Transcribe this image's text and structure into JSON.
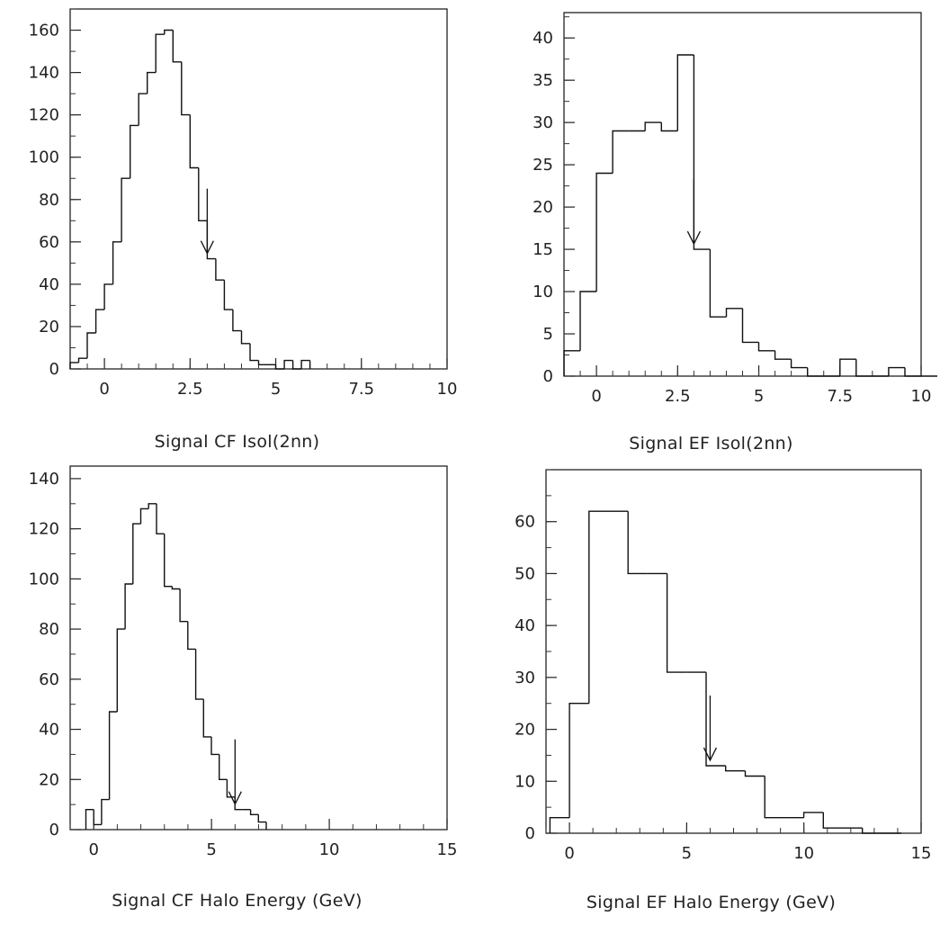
{
  "chart_data": [
    {
      "type": "histogram",
      "xlabel": "Signal CF Isol(2nn)",
      "ylabel": "",
      "xlim": [
        -1,
        10
      ],
      "ylim": [
        0,
        170
      ],
      "xticks": [
        "0",
        "2.5",
        "5",
        "7.5",
        "10"
      ],
      "yticks": [
        "0",
        "20",
        "40",
        "60",
        "80",
        "100",
        "120",
        "140",
        "160"
      ],
      "bin_width": 0.25,
      "bins_start": -1,
      "values": [
        3,
        5,
        17,
        28,
        40,
        60,
        90,
        115,
        130,
        140,
        158,
        160,
        145,
        120,
        95,
        70,
        52,
        42,
        28,
        18,
        12,
        4,
        2,
        2,
        0,
        4,
        0,
        4
      ],
      "cut_arrow_x": 3.0
    },
    {
      "type": "histogram",
      "xlabel": "Signal EF Isol(2nn)",
      "ylabel": "",
      "xlim": [
        -1,
        10
      ],
      "ylim": [
        0,
        43
      ],
      "xticks": [
        "0",
        "2.5",
        "5",
        "7.5",
        "10"
      ],
      "yticks": [
        "0",
        "5",
        "10",
        "15",
        "20",
        "25",
        "30",
        "35",
        "40"
      ],
      "bin_width": 0.5,
      "bins_start": -1,
      "values": [
        3,
        10,
        24,
        29,
        29,
        30,
        29,
        38,
        15,
        7,
        8,
        4,
        3,
        2,
        1,
        0,
        0,
        2,
        0,
        0,
        1,
        0,
        0
      ],
      "cut_arrow_x": 3.0
    },
    {
      "type": "histogram",
      "xlabel": "Signal CF Halo Energy (GeV)",
      "ylabel": "",
      "xlim": [
        -1,
        15
      ],
      "ylim": [
        0,
        145
      ],
      "xticks": [
        "0",
        "5",
        "10",
        "15"
      ],
      "yticks": [
        "0",
        "20",
        "40",
        "60",
        "80",
        "100",
        "120",
        "140"
      ],
      "bin_width": 0.333,
      "bins_start": -0.333,
      "values": [
        8,
        2,
        12,
        47,
        80,
        98,
        122,
        128,
        130,
        118,
        97,
        96,
        83,
        72,
        52,
        37,
        30,
        20,
        13,
        8,
        8,
        6,
        3
      ],
      "cut_arrow_x": 6.0
    },
    {
      "type": "histogram",
      "xlabel": "Signal EF Halo Energy (GeV)",
      "ylabel": "",
      "xlim": [
        -1,
        15
      ],
      "ylim": [
        0,
        70
      ],
      "xticks": [
        "0",
        "5",
        "10",
        "15"
      ],
      "yticks": [
        "0",
        "10",
        "20",
        "30",
        "40",
        "50",
        "60"
      ],
      "bin_width": 0.833,
      "bins_start": -0.833,
      "values": [
        3,
        25,
        62,
        62,
        50,
        50,
        31,
        31,
        13,
        12,
        11,
        3,
        3,
        4,
        1,
        1,
        0,
        0
      ],
      "cut_arrow_x": 6.0
    }
  ]
}
